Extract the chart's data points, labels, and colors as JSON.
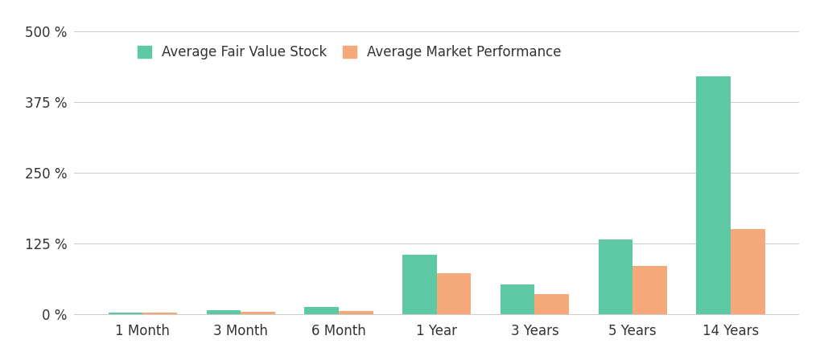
{
  "categories": [
    "1 Month",
    "3 Month",
    "6 Month",
    "1 Year",
    "3 Years",
    "5 Years",
    "14 Years"
  ],
  "fair_value": [
    3,
    7,
    13,
    105,
    52,
    132,
    420
  ],
  "market_perf": [
    2,
    4,
    5,
    72,
    35,
    85,
    150
  ],
  "fair_value_color": "#5DC8A4",
  "market_perf_color": "#F5A87A",
  "legend_fair_value": "Average Fair Value Stock",
  "legend_market_perf": "Average Market Performance",
  "yticks": [
    0,
    125,
    250,
    375,
    500
  ],
  "ytick_labels": [
    "0 %",
    "125 %",
    "250 %",
    "375 %",
    "500 %"
  ],
  "ylim": [
    -5,
    530
  ],
  "background_color": "#FFFFFF",
  "grid_color": "#CCCCCC",
  "bar_width": 0.35,
  "legend_fontsize": 12,
  "tick_fontsize": 12
}
